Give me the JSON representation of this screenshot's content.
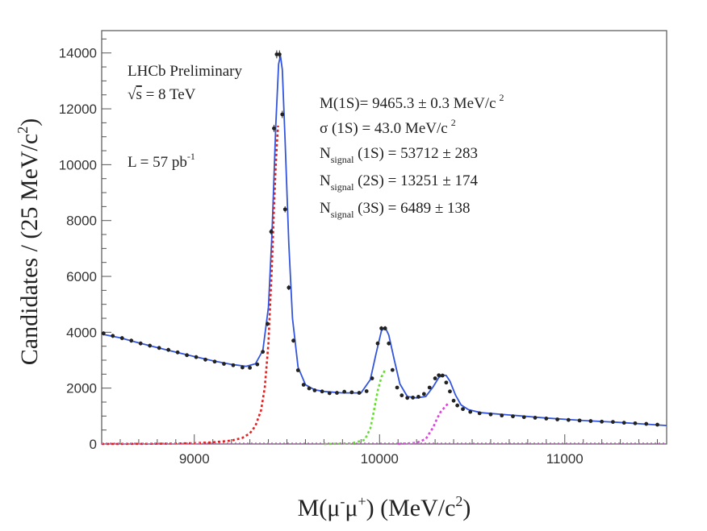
{
  "chart_data": {
    "type": "line",
    "xlabel": {
      "main": "M(μ",
      "sup1": "-",
      "mid": "μ",
      "sup2": "+",
      "end": ") (MeV/c",
      "sup3": "2",
      "close": ")"
    },
    "ylabel": {
      "main": "Candidates / (25 MeV/c",
      "sup": "2",
      "close": ")"
    },
    "xlim": [
      8500,
      11550
    ],
    "ylim": [
      0,
      14800
    ],
    "x_ticks": [
      9000,
      10000,
      11000
    ],
    "y_ticks": [
      0,
      2000,
      4000,
      6000,
      8000,
      10000,
      12000,
      14000
    ],
    "grid": false,
    "annotations": {
      "experiment": "LHCb Preliminary",
      "energy": {
        "sqrt": "√",
        "s": "s",
        "rest": " = 8 TeV"
      },
      "lumi": {
        "main": "L = 57 pb",
        "sup": "-1"
      },
      "mass": {
        "main": "M(1S)= 9465.3 ±   0.3 MeV/c",
        "sup": "2"
      },
      "sigma": {
        "main": "σ (1S) =   43.0 MeV/c",
        "sup": "2"
      },
      "n1s": {
        "n": "N",
        "sub": "signal",
        "rest": " (1S) = 53712 ±   283"
      },
      "n2s": {
        "n": "N",
        "sub": "signal",
        "rest": " (2S) = 13251 ±  174"
      },
      "n3s": {
        "n": "N",
        "sub": "signal",
        "rest": " (3S) =  6489 ±  138"
      }
    },
    "series": [
      {
        "kind": "data",
        "color": "#222222",
        "x": [
          8510,
          8560,
          8610,
          8660,
          8710,
          8760,
          8810,
          8860,
          8910,
          8960,
          9010,
          9060,
          9110,
          9160,
          9210,
          9260,
          9300,
          9340,
          9370,
          9395,
          9415,
          9430,
          9445,
          9460,
          9475,
          9490,
          9510,
          9535,
          9560,
          9590,
          9620,
          9650,
          9690,
          9730,
          9770,
          9810,
          9850,
          9890,
          9930,
          9960,
          9990,
          10010,
          10030,
          10050,
          10070,
          10095,
          10120,
          10150,
          10180,
          10210,
          10240,
          10270,
          10300,
          10320,
          10340,
          10360,
          10380,
          10400,
          10420,
          10450,
          10490,
          10540,
          10600,
          10660,
          10720,
          10780,
          10840,
          10900,
          10960,
          11020,
          11080,
          11140,
          11200,
          11260,
          11320,
          11380,
          11440,
          11500
        ],
        "y": [
          3960,
          3870,
          3790,
          3700,
          3600,
          3520,
          3440,
          3370,
          3280,
          3180,
          3110,
          3020,
          2950,
          2870,
          2820,
          2740,
          2730,
          2850,
          3300,
          4300,
          7600,
          11300,
          13950,
          13950,
          11800,
          8400,
          5600,
          3700,
          2640,
          2120,
          1990,
          1920,
          1880,
          1820,
          1830,
          1870,
          1850,
          1830,
          1890,
          2350,
          3600,
          4140,
          4140,
          3600,
          2650,
          2020,
          1740,
          1650,
          1660,
          1690,
          1790,
          2020,
          2350,
          2460,
          2450,
          2200,
          1880,
          1550,
          1380,
          1250,
          1150,
          1100,
          1060,
          1020,
          990,
          960,
          940,
          910,
          880,
          860,
          840,
          820,
          800,
          790,
          760,
          740,
          720,
          690
        ]
      },
      {
        "kind": "fit_total",
        "color": "#3355dd",
        "x": [
          8510,
          8600,
          8700,
          8800,
          8900,
          9000,
          9100,
          9200,
          9280,
          9330,
          9370,
          9400,
          9420,
          9440,
          9455,
          9465,
          9475,
          9490,
          9510,
          9530,
          9560,
          9600,
          9650,
          9700,
          9800,
          9900,
          9950,
          9980,
          10010,
          10030,
          10050,
          10080,
          10110,
          10150,
          10200,
          10250,
          10290,
          10320,
          10345,
          10360,
          10380,
          10410,
          10440,
          10480,
          10550,
          10700,
          10900,
          11100,
          11300,
          11550
        ],
        "y": [
          3920,
          3800,
          3620,
          3450,
          3290,
          3130,
          2980,
          2850,
          2780,
          2870,
          3350,
          4900,
          7600,
          11400,
          13600,
          13900,
          13400,
          10900,
          7200,
          4500,
          2750,
          2120,
          1940,
          1880,
          1830,
          1830,
          2300,
          3200,
          4050,
          4180,
          3900,
          3000,
          2150,
          1700,
          1650,
          1700,
          2050,
          2380,
          2470,
          2450,
          2250,
          1750,
          1400,
          1230,
          1120,
          1040,
          930,
          840,
          770,
          660
        ]
      },
      {
        "kind": "signal_1s",
        "color": "#dd2222",
        "x": [
          8500,
          8800,
          9000,
          9100,
          9200,
          9260,
          9300,
          9330,
          9360,
          9380,
          9400,
          9420,
          9430,
          9440,
          9448,
          9452
        ],
        "y": [
          0,
          10,
          30,
          60,
          120,
          220,
          380,
          650,
          1200,
          2000,
          3600,
          6500,
          8400,
          10000,
          11000,
          11400
        ]
      },
      {
        "kind": "signal_2s",
        "color": "#66dd33",
        "x": [
          9700,
          9850,
          9920,
          9950,
          9970,
          9990,
          10010,
          10030
        ],
        "y": [
          0,
          20,
          150,
          550,
          1200,
          1900,
          2400,
          2650
        ]
      },
      {
        "kind": "signal_3s",
        "color": "#dd44dd",
        "x": [
          10100,
          10200,
          10250,
          10290,
          10310,
          10330,
          10350,
          10370
        ],
        "y": [
          0,
          40,
          180,
          600,
          900,
          1150,
          1300,
          1450
        ]
      }
    ]
  }
}
